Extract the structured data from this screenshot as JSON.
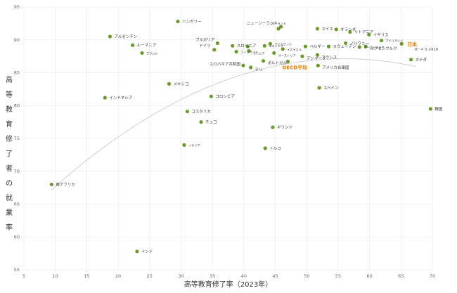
{
  "chart_data": {
    "type": "scatter",
    "xlabel": "高等教育修了率（2023年）",
    "ylabel": "高等教育修了者の就業率",
    "xlim": [
      5,
      70
    ],
    "ylim": [
      55,
      95
    ],
    "xticks": [
      "5",
      "10",
      "15",
      "20",
      "25",
      "30",
      "35",
      "40",
      "45",
      "50",
      "55",
      "60",
      "65",
      "70"
    ],
    "yticks": [
      "55",
      "60",
      "65",
      "70",
      "75",
      "80",
      "85",
      "90",
      "95"
    ],
    "grid": true,
    "trendline": {
      "type": "polynomial",
      "r2_label": "R² = 0.2416"
    },
    "points": [
      {
        "x": 9.4,
        "y": 68.0,
        "label": "南アフリカ"
      },
      {
        "x": 18.7,
        "y": 90.5,
        "label": "アルゼンチン"
      },
      {
        "x": 22.3,
        "y": 89.2,
        "label": "ルーマニア"
      },
      {
        "x": 23.8,
        "y": 88.0,
        "label": "ブラジル"
      },
      {
        "x": 17.9,
        "y": 81.2,
        "label": "インドネシア"
      },
      {
        "x": 23.0,
        "y": 57.8,
        "label": "インド"
      },
      {
        "x": 28.1,
        "y": 83.3,
        "label": "メキシコ"
      },
      {
        "x": 30.5,
        "y": 74.0,
        "label": "イタリア"
      },
      {
        "x": 29.5,
        "y": 92.8,
        "label": "ハンガリー"
      },
      {
        "x": 31.0,
        "y": 79.1,
        "label": "コスタリカ"
      },
      {
        "x": 33.2,
        "y": 77.5,
        "label": "チェコ"
      },
      {
        "x": 34.8,
        "y": 81.4,
        "label": "コロンビア"
      },
      {
        "x": 35.8,
        "y": 89.5,
        "label": "ブルガリア"
      },
      {
        "x": 35.3,
        "y": 88.5,
        "label": "ドイツ"
      },
      {
        "x": 38.2,
        "y": 89.1,
        "label": "スロベニア"
      },
      {
        "x": 38.8,
        "y": 88.2,
        "label": "フィンランド"
      },
      {
        "x": 39.9,
        "y": 86.1,
        "label": "スロバキア共和国"
      },
      {
        "x": 40.6,
        "y": 89.0,
        "label": "デンマーク小"
      },
      {
        "x": 41.1,
        "y": 85.8,
        "label": "チリ"
      },
      {
        "x": 40.8,
        "y": 88.3,
        "label": "ラトビア"
      },
      {
        "x": 43.1,
        "y": 86.8,
        "label": "ポルトガル"
      },
      {
        "x": 43.4,
        "y": 73.5,
        "label": "トルコ"
      },
      {
        "x": 44.6,
        "y": 76.7,
        "label": "ギリシャ"
      },
      {
        "x": 44.8,
        "y": 88.0,
        "label": "オーストリア"
      },
      {
        "x": 44.2,
        "y": 89.4,
        "label": "アイスランド"
      },
      {
        "x": 43.3,
        "y": 89.1,
        "label": "エストニア"
      },
      {
        "x": 45.5,
        "y": 91.7,
        "label": "ポーランド"
      },
      {
        "x": 45.9,
        "y": 92.0,
        "label": "ニュージーランド"
      },
      {
        "x": 46.2,
        "y": 88.6,
        "label": "イスラエル"
      },
      {
        "x": 47.0,
        "y": 86.7,
        "label": "OECD平均"
      },
      {
        "x": 49.3,
        "y": 87.5,
        "label": "デンマーク"
      },
      {
        "x": 49.8,
        "y": 89.0,
        "label": "ベルギー"
      },
      {
        "x": 51.7,
        "y": 91.7,
        "label": "スイス"
      },
      {
        "x": 51.8,
        "y": 86.1,
        "label": "アメリカ合衆国"
      },
      {
        "x": 51.7,
        "y": 87.7,
        "label": "フランス"
      },
      {
        "x": 52.0,
        "y": 82.7,
        "label": "スペイン"
      },
      {
        "x": 53.5,
        "y": 89.0,
        "label": "スウェーデン"
      },
      {
        "x": 54.7,
        "y": 91.6,
        "label": "オランダ"
      },
      {
        "x": 56.2,
        "y": 89.5,
        "label": "ノルウェー"
      },
      {
        "x": 56.9,
        "y": 91.2,
        "label": "リトアニア"
      },
      {
        "x": 58.4,
        "y": 88.9,
        "label": "オーストラリア"
      },
      {
        "x": 59.4,
        "y": 89.0,
        "label": "ルクセンブルク"
      },
      {
        "x": 59.9,
        "y": 90.8,
        "label": "イギリス"
      },
      {
        "x": 61.9,
        "y": 89.9,
        "label": "アイルランド"
      },
      {
        "x": 65.1,
        "y": 89.4,
        "label": "日本"
      },
      {
        "x": 66.6,
        "y": 87.0,
        "label": "カナダ"
      },
      {
        "x": 69.7,
        "y": 79.5,
        "label": "韓国"
      }
    ],
    "highlights": [
      "日本",
      "OECD平均"
    ],
    "colors": {
      "point": "#6a9a28",
      "highlight_label": "#ee7d00",
      "trend": "#cfcfcf",
      "grid": "#e6e6e6"
    }
  }
}
